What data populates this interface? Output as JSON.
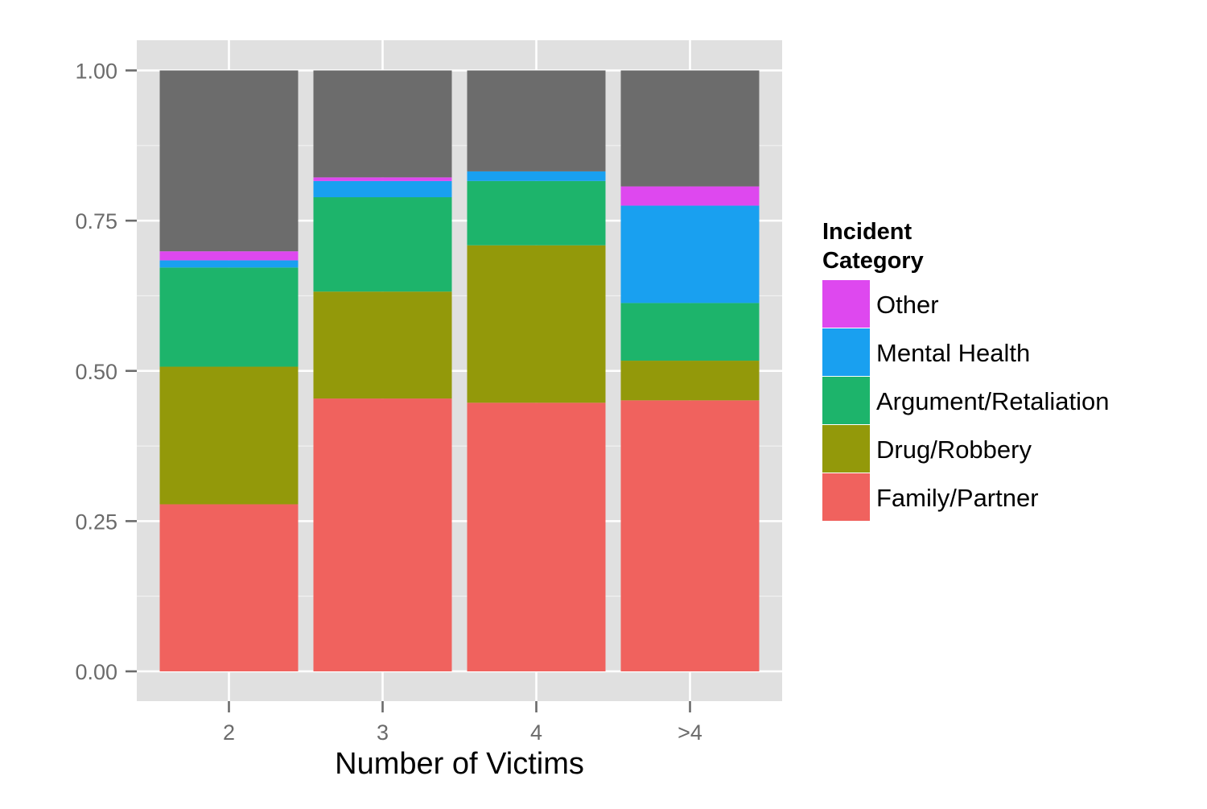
{
  "chart_data": {
    "type": "bar",
    "stacked": true,
    "categories": [
      "2",
      "3",
      "4",
      ">4"
    ],
    "series": [
      {
        "name": "Family/Partner",
        "color": "#F0625E",
        "values": [
          0.278,
          0.454,
          0.447,
          0.451
        ]
      },
      {
        "name": "Drug/Robbery",
        "color": "#93990A",
        "values": [
          0.229,
          0.178,
          0.262,
          0.066
        ]
      },
      {
        "name": "Argument/Retaliation",
        "color": "#1DB46B",
        "values": [
          0.165,
          0.157,
          0.107,
          0.096
        ]
      },
      {
        "name": "Mental Health",
        "color": "#19A0F0",
        "values": [
          0.012,
          0.027,
          0.016,
          0.162
        ]
      },
      {
        "name": "Other",
        "color": "#DE48EF",
        "values": [
          0.015,
          0.006,
          0.0,
          0.032
        ]
      },
      {
        "name": "",
        "color": "#6C6C6C",
        "values": [
          0.301,
          0.178,
          0.168,
          0.193
        ]
      }
    ],
    "xlabel": "Number of Victims",
    "ylabel": "",
    "ylim": [
      0,
      1.05
    ],
    "yticks": [
      "0.00",
      "0.25",
      "0.50",
      "0.75",
      "1.00"
    ],
    "ytick_values": [
      0,
      0.25,
      0.5,
      0.75,
      1.0
    ],
    "legend": {
      "title": "Incident\nCategory",
      "title_lines": [
        "Incident",
        "Category"
      ],
      "order": [
        "Other",
        "Mental Health",
        "Argument/Retaliation",
        "Drug/Robbery",
        "Family/Partner"
      ],
      "placement": "right"
    },
    "colors": {
      "panel_background": "#E0E0E0",
      "grid": "#FFFFFF",
      "tick_mark": "#6b6b6b"
    },
    "grid": true
  }
}
